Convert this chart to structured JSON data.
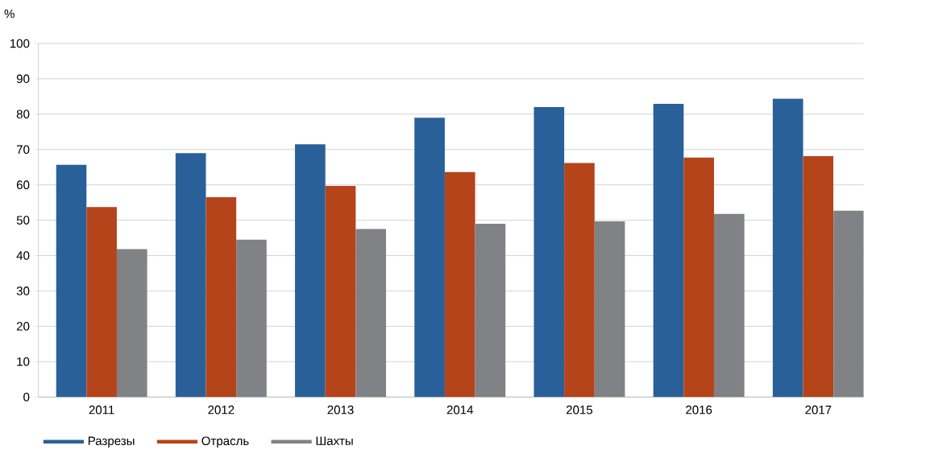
{
  "chart_data": {
    "type": "bar",
    "ylabel": "%",
    "categories": [
      "2011",
      "2012",
      "2013",
      "2014",
      "2015",
      "2016",
      "2017"
    ],
    "series": [
      {
        "name": "Разрезы",
        "color": "#2a6099",
        "values": [
          65.7,
          69.0,
          71.5,
          79.0,
          82.0,
          82.9,
          84.4
        ]
      },
      {
        "name": "Отрасль",
        "color": "#b5441a",
        "values": [
          53.7,
          56.5,
          59.7,
          63.6,
          66.2,
          67.7,
          68.1
        ]
      },
      {
        "name": "Шахты",
        "color": "#808285",
        "values": [
          41.8,
          44.5,
          47.5,
          49.0,
          49.7,
          51.8,
          52.7
        ]
      }
    ],
    "ylim": [
      0,
      100
    ],
    "yticks": [
      0,
      10,
      20,
      30,
      40,
      50,
      60,
      70,
      80,
      90,
      100
    ],
    "grid": "y",
    "legend": "bottom left"
  }
}
